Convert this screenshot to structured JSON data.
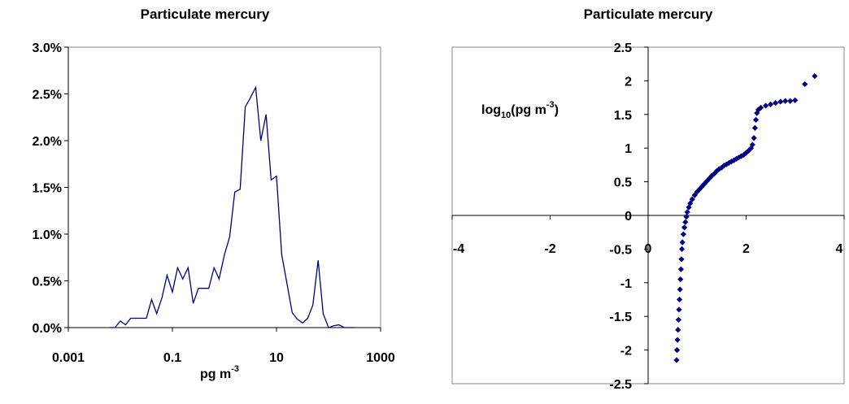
{
  "chart_data": [
    {
      "type": "line",
      "title": "Particulate mercury",
      "xlabel": "pg m",
      "xlabel_sup": "-3",
      "ylabel": "",
      "x_scale": "log",
      "xlim": [
        0.001,
        1000
      ],
      "ylim": [
        0,
        3.0
      ],
      "x_ticks": [
        "0.001",
        "0.1",
        "10",
        "1000"
      ],
      "y_ticks": [
        "0.0%",
        "0.5%",
        "1.0%",
        "1.5%",
        "2.0%",
        "2.5%",
        "3.0%"
      ],
      "line_color": "#000080",
      "grid": false,
      "legend": "none",
      "x": [
        0.0063,
        0.0079,
        0.01,
        0.0126,
        0.0158,
        0.02,
        0.0251,
        0.0316,
        0.0398,
        0.05,
        0.063,
        0.079,
        0.1,
        0.126,
        0.158,
        0.2,
        0.251,
        0.316,
        0.398,
        0.5,
        0.63,
        0.79,
        1.0,
        1.26,
        1.58,
        2.0,
        2.51,
        3.16,
        3.98,
        5.0,
        6.3,
        7.9,
        10.0,
        12.6,
        15.8,
        20.0,
        25.1,
        31.6,
        39.8,
        50.0,
        63.0,
        79.0,
        100.0,
        126.0,
        158.0,
        200.0,
        251.0,
        316.0
      ],
      "values": [
        0.0,
        0.0,
        0.07,
        0.03,
        0.1,
        0.1,
        0.1,
        0.1,
        0.3,
        0.15,
        0.32,
        0.56,
        0.38,
        0.64,
        0.52,
        0.64,
        0.26,
        0.42,
        0.42,
        0.42,
        0.64,
        0.52,
        0.78,
        0.97,
        1.45,
        1.48,
        2.36,
        2.46,
        2.57,
        2.0,
        2.28,
        1.58,
        1.62,
        0.78,
        0.48,
        0.16,
        0.09,
        0.05,
        0.1,
        0.24,
        0.72,
        0.15,
        0.0,
        0.02,
        0.03,
        0.0,
        0.0,
        0.0
      ]
    },
    {
      "type": "scatter",
      "title": "Particulate mercury",
      "ylabel": "log",
      "ylabel_sub": "10",
      "ylabel_rest": "(pg m",
      "ylabel_sup": "-3",
      "ylabel_end": ")",
      "xlim": [
        -4,
        4
      ],
      "ylim": [
        -2.5,
        2.5
      ],
      "x_ticks": [
        "-4",
        "-2",
        "0",
        "2",
        "4"
      ],
      "y_ticks": [
        "-2.5",
        "-2",
        "-1.5",
        "-1",
        "-0.5",
        "0",
        "0.5",
        "1",
        "1.5",
        "2",
        "2.5"
      ],
      "marker": "diamond",
      "marker_color": "#000080",
      "grid": false,
      "legend": "none",
      "x": [
        0.58,
        0.59,
        0.6,
        0.61,
        0.62,
        0.63,
        0.64,
        0.65,
        0.66,
        0.67,
        0.68,
        0.69,
        0.7,
        0.72,
        0.74,
        0.76,
        0.78,
        0.8,
        0.83,
        0.86,
        0.9,
        0.95,
        1.0,
        1.05,
        1.1,
        1.15,
        1.2,
        1.25,
        1.3,
        1.35,
        1.4,
        1.45,
        1.5,
        1.55,
        1.6,
        1.65,
        1.7,
        1.75,
        1.8,
        1.85,
        1.9,
        1.95,
        2.0,
        2.05,
        2.1,
        2.13,
        2.16,
        2.18,
        2.2,
        2.22,
        2.25,
        2.3,
        2.4,
        2.5,
        2.6,
        2.7,
        2.8,
        2.9,
        3.0,
        3.2,
        3.4
      ],
      "y": [
        -2.15,
        -2.0,
        -1.85,
        -1.7,
        -1.55,
        -1.4,
        -1.25,
        -1.1,
        -0.95,
        -0.8,
        -0.65,
        -0.5,
        -0.4,
        -0.28,
        -0.18,
        -0.1,
        -0.02,
        0.05,
        0.12,
        0.18,
        0.24,
        0.3,
        0.35,
        0.39,
        0.43,
        0.47,
        0.51,
        0.55,
        0.59,
        0.62,
        0.66,
        0.69,
        0.71,
        0.74,
        0.76,
        0.78,
        0.8,
        0.82,
        0.84,
        0.86,
        0.88,
        0.9,
        0.93,
        0.96,
        1.0,
        1.05,
        1.15,
        1.3,
        1.42,
        1.52,
        1.57,
        1.6,
        1.63,
        1.65,
        1.67,
        1.69,
        1.7,
        1.7,
        1.71,
        1.95,
        2.07
      ]
    }
  ]
}
